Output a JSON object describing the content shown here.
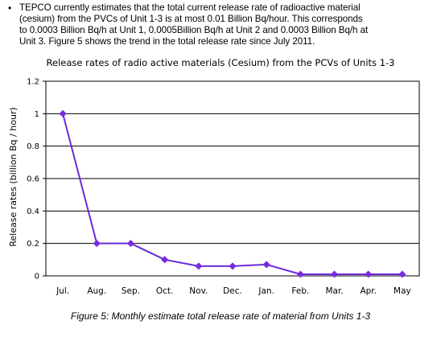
{
  "intro": {
    "bullet": "•",
    "text": "TEPCO currently estimates that the total current release rate of radioactive material\n(cesium) from the PVCs of Unit 1-3 is at most 0.01 Billion Bq/hour.  This corresponds\nto 0.0003 Billion Bq/h at Unit 1, 0.0005Billion Bq/h at Unit 2 and 0.0003 Billion Bq/h at\nUnit 3.  Figure 5 shows the trend in the total release rate since July 2011."
  },
  "chart_data": {
    "type": "line",
    "title": "Release rates of radio active materials (Cesium) from the PCVs of Units 1-3",
    "xlabel": "",
    "ylabel": "Release rates (billion Bq / hour)",
    "categories": [
      "Jul.",
      "Aug.",
      "Sep.",
      "Oct.",
      "Nov.",
      "Dec.",
      "Jan.",
      "Feb.",
      "Mar.",
      "Apr.",
      "May"
    ],
    "series": [
      {
        "values": [
          1.0,
          0.2,
          0.2,
          0.1,
          0.06,
          0.06,
          0.07,
          0.01,
          0.01,
          0.01,
          0.01
        ]
      }
    ],
    "ylim": [
      0,
      1.2
    ],
    "yticks": [
      "0",
      "0.2",
      "0.4",
      "0.6",
      "0.8",
      "1",
      "1.2"
    ],
    "grid": true,
    "line_color": "#6a2bd8",
    "marker_color": "#7a2be0"
  },
  "caption": "Figure 5: Monthly estimate total release rate of material from Units 1-3"
}
